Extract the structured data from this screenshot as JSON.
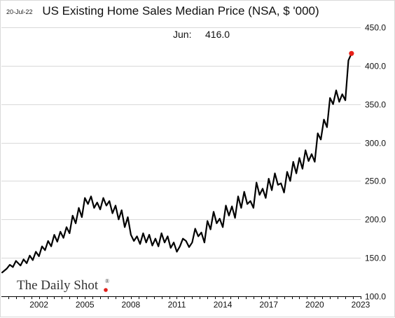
{
  "header": {
    "date_stamp": "20-Jul-22"
  },
  "annotation": {
    "label": "Jun:",
    "value": "416.0"
  },
  "brand": {
    "name": "The Daily Shot",
    "registered_mark": "®",
    "dot_color": "#e0201b"
  },
  "colors": {
    "line": "#000000",
    "last_point": "#e8211a",
    "grid": "#d9d9d9"
  },
  "chart_data": {
    "type": "line",
    "title": "US Existing Home Sales Median Price (NSA, $ '000)",
    "xlabel": "",
    "ylabel": "",
    "xlim": [
      1999.55,
      2023.0
    ],
    "ylim": [
      100,
      450
    ],
    "y_ticks": [
      100,
      150,
      200,
      250,
      300,
      350,
      400,
      450
    ],
    "y_tick_labels": [
      "100.0",
      "150.0",
      "200.0",
      "250.0",
      "300.0",
      "350.0",
      "400.0",
      "450.0"
    ],
    "x_ticks": [
      2002,
      2005,
      2008,
      2011,
      2014,
      2017,
      2020,
      2023
    ],
    "x_tick_labels": [
      "2002",
      "2005",
      "2008",
      "2011",
      "2014",
      "2017",
      "2020",
      "2023"
    ],
    "grid": "horizontal",
    "legend": "none",
    "y_axis_position": "right",
    "series": [
      {
        "x": [
          1999.6,
          1999.9,
          2000.1,
          2000.3,
          2000.5,
          2000.8,
          2001.0,
          2001.2,
          2001.4,
          2001.6,
          2001.8,
          2002.0,
          2002.2,
          2002.4,
          2002.6,
          2002.8,
          2003.0,
          2003.2,
          2003.4,
          2003.6,
          2003.8,
          2004.0,
          2004.2,
          2004.4,
          2004.6,
          2004.8,
          2005.0,
          2005.2,
          2005.4,
          2005.6,
          2005.8,
          2006.0,
          2006.2,
          2006.4,
          2006.6,
          2006.8,
          2007.0,
          2007.2,
          2007.4,
          2007.6,
          2007.8,
          2008.0,
          2008.2,
          2008.4,
          2008.6,
          2008.8,
          2009.0,
          2009.2,
          2009.4,
          2009.6,
          2009.8,
          2010.0,
          2010.2,
          2010.4,
          2010.6,
          2010.8,
          2011.0,
          2011.2,
          2011.4,
          2011.6,
          2011.8,
          2012.0,
          2012.2,
          2012.4,
          2012.6,
          2012.8,
          2013.0,
          2013.2,
          2013.4,
          2013.6,
          2013.8,
          2014.0,
          2014.2,
          2014.4,
          2014.6,
          2014.8,
          2015.0,
          2015.2,
          2015.4,
          2015.6,
          2015.8,
          2016.0,
          2016.2,
          2016.4,
          2016.6,
          2016.8,
          2017.0,
          2017.2,
          2017.4,
          2017.6,
          2017.8,
          2018.0,
          2018.2,
          2018.4,
          2018.6,
          2018.8,
          2019.0,
          2019.2,
          2019.4,
          2019.6,
          2019.8,
          2020.0,
          2020.2,
          2020.4,
          2020.6,
          2020.8,
          2021.0,
          2021.2,
          2021.4,
          2021.6,
          2021.8,
          2022.0,
          2022.2,
          2022.4
        ],
        "y": [
          131,
          136,
          141,
          138,
          146,
          140,
          148,
          143,
          153,
          147,
          158,
          152,
          165,
          160,
          172,
          165,
          180,
          171,
          184,
          176,
          190,
          182,
          205,
          195,
          215,
          203,
          228,
          220,
          230,
          215,
          222,
          213,
          228,
          218,
          224,
          208,
          218,
          200,
          212,
          190,
          203,
          180,
          172,
          178,
          168,
          182,
          170,
          180,
          166,
          175,
          165,
          182,
          170,
          178,
          163,
          170,
          158,
          165,
          175,
          172,
          164,
          170,
          188,
          178,
          183,
          170,
          198,
          187,
          210,
          195,
          201,
          190,
          218,
          205,
          217,
          202,
          230,
          215,
          236,
          220,
          224,
          215,
          248,
          232,
          240,
          228,
          253,
          238,
          260,
          245,
          247,
          235,
          262,
          250,
          275,
          260,
          280,
          266,
          290,
          276,
          285,
          275,
          312,
          304,
          330,
          320,
          358,
          350,
          368,
          353,
          363,
          355,
          407,
          416
        ]
      }
    ],
    "last_value": 416.0
  }
}
